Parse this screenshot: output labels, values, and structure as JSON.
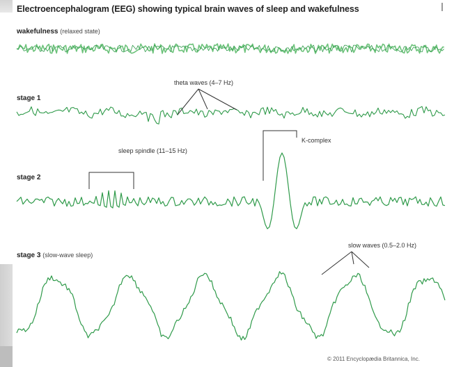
{
  "title": "Electroencephalogram (EEG) showing typical brain waves of sleep and wakefulness",
  "stages": [
    {
      "label": "wakefulness",
      "note": "(relaxed state)"
    },
    {
      "label": "stage 1",
      "note": ""
    },
    {
      "label": "stage 2",
      "note": ""
    },
    {
      "label": "stage 3",
      "note": "(slow-wave sleep)"
    }
  ],
  "annotations": {
    "theta": "theta waves (4–7 Hz)",
    "spindle": "sleep spindle (11–15 Hz)",
    "kcomplex": "K-complex",
    "slow": "slow waves (0.5–2.0 Hz)"
  },
  "credit": "© 2011 Encyclopædia Britannica, Inc.",
  "colors": {
    "wave": "#2f9a4a",
    "wave_light": "#6cc27a",
    "ink": "#222222"
  }
}
